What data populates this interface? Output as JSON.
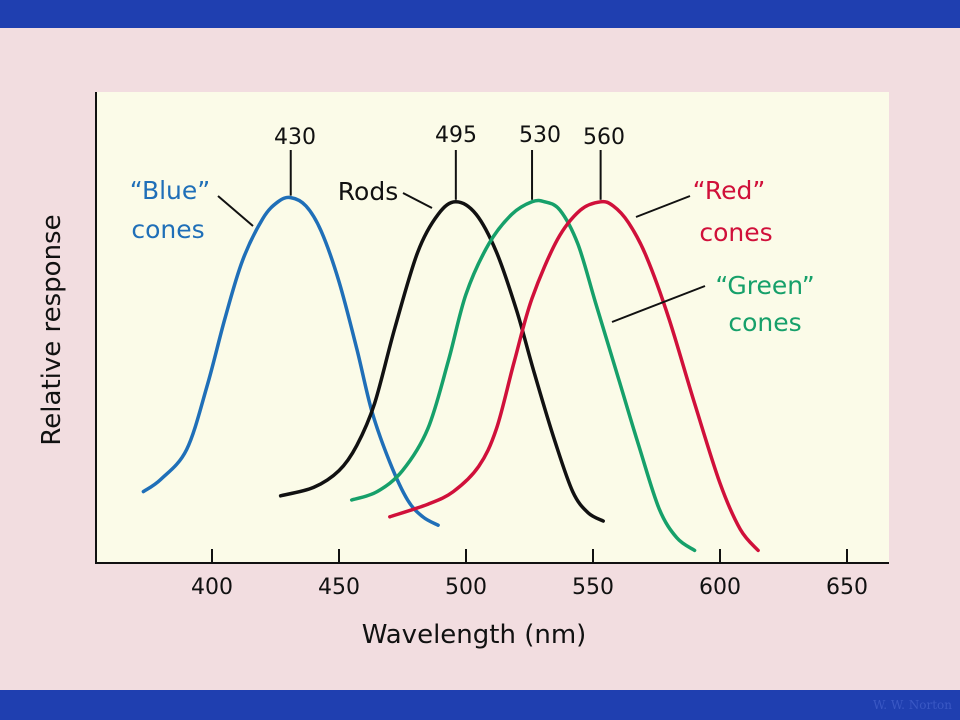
{
  "credit": "W. W. Norton",
  "colors": {
    "header_bar": "#1f3fb0",
    "slide_bg": "#f2dde0",
    "plot_bg": "#fbfbe8",
    "blue": "#1f6fb8",
    "black": "#111111",
    "green": "#16a06a",
    "red": "#d0103a"
  },
  "chart_data": {
    "type": "line",
    "title": "",
    "xlabel": "Wavelength (nm)",
    "ylabel": "Relative response",
    "xlim": [
      360,
      660
    ],
    "ylim": [
      0,
      1
    ],
    "x_ticks": [
      400,
      450,
      500,
      550,
      600,
      650
    ],
    "y_ticks": [],
    "grid": false,
    "legend": "none",
    "series": [
      {
        "name": "“Blue” cones",
        "color": "#1f6fb8",
        "peak_label": "430",
        "x": [
          373,
          380,
          390,
          398,
          405,
          412,
          420,
          426,
          431,
          437,
          443,
          450,
          457,
          463,
          470,
          477,
          483,
          489
        ],
        "y": [
          0.17,
          0.2,
          0.27,
          0.42,
          0.58,
          0.72,
          0.82,
          0.86,
          0.87,
          0.85,
          0.79,
          0.67,
          0.51,
          0.36,
          0.24,
          0.15,
          0.11,
          0.09
        ]
      },
      {
        "name": "Rods",
        "color": "#111111",
        "peak_label": "495",
        "x": [
          427,
          440,
          450,
          457,
          464,
          472,
          481,
          489,
          496,
          504,
          512,
          520,
          527,
          535,
          542,
          548,
          554
        ],
        "y": [
          0.16,
          0.18,
          0.22,
          0.28,
          0.38,
          0.56,
          0.74,
          0.83,
          0.86,
          0.83,
          0.74,
          0.6,
          0.45,
          0.29,
          0.17,
          0.12,
          0.1
        ]
      },
      {
        "name": "“Green” cones",
        "color": "#16a06a",
        "peak_label": "530",
        "x": [
          455,
          465,
          475,
          485,
          493,
          500,
          509,
          518,
          526,
          531,
          537,
          544,
          551,
          560,
          568,
          576,
          583,
          590
        ],
        "y": [
          0.15,
          0.17,
          0.22,
          0.32,
          0.48,
          0.64,
          0.76,
          0.83,
          0.86,
          0.86,
          0.84,
          0.76,
          0.62,
          0.44,
          0.28,
          0.13,
          0.06,
          0.03
        ]
      },
      {
        "name": "“Red” cones",
        "color": "#d0103a",
        "peak_label": "560",
        "x": [
          470,
          485,
          495,
          505,
          512,
          519,
          526,
          536,
          545,
          553,
          558,
          564,
          571,
          580,
          590,
          600,
          608,
          615
        ],
        "y": [
          0.11,
          0.14,
          0.17,
          0.23,
          0.32,
          0.48,
          0.63,
          0.77,
          0.84,
          0.86,
          0.85,
          0.81,
          0.73,
          0.58,
          0.38,
          0.19,
          0.08,
          0.03
        ]
      }
    ],
    "annotations": [
      {
        "text": "430",
        "x": 430
      },
      {
        "text": "495",
        "x": 496
      },
      {
        "text": "530",
        "x": 529
      },
      {
        "text": "560",
        "x": 555
      },
      {
        "text": "“Blue”",
        "series": 0
      },
      {
        "text": "cones",
        "series": 0
      },
      {
        "text": "Rods",
        "series": 1
      },
      {
        "text": "“Red”",
        "series": 3
      },
      {
        "text": "cones",
        "series": 3
      },
      {
        "text": "“Green”",
        "series": 2
      },
      {
        "text": "cones",
        "series": 2
      }
    ]
  }
}
